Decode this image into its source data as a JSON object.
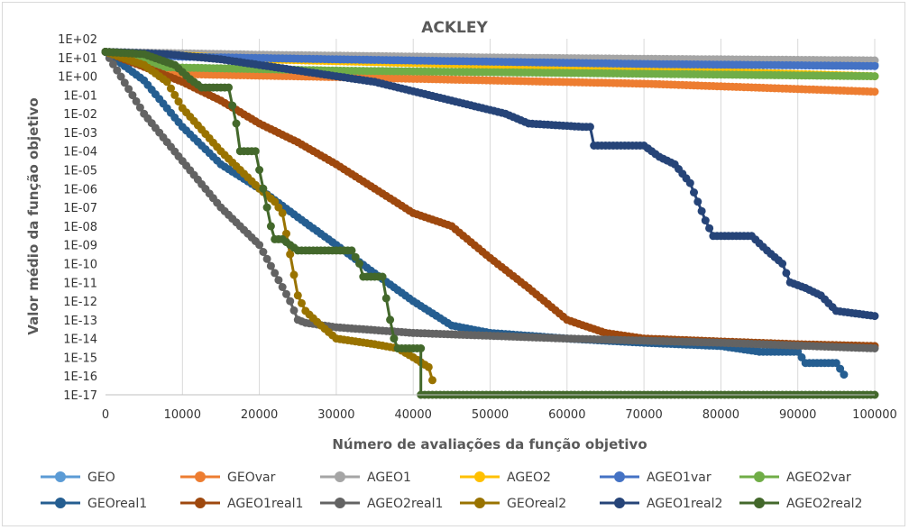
{
  "chart_data": {
    "type": "line",
    "title": "ACKLEY",
    "xlabel": "Número de avaliações da função objetivo",
    "ylabel": "Valor médio da função objetivo",
    "xlim": [
      0,
      100000
    ],
    "ylim_log10": [
      -17,
      2
    ],
    "yscale": "log",
    "x_tick_labels": [
      "0",
      "10000",
      "20000",
      "30000",
      "40000",
      "50000",
      "60000",
      "70000",
      "80000",
      "90000",
      "100000"
    ],
    "y_tick_labels": [
      "1E+02",
      "1E+01",
      "1E+00",
      "1E-01",
      "1E-02",
      "1E-03",
      "1E-04",
      "1E-05",
      "1E-06",
      "1E-07",
      "1E-08",
      "1E-09",
      "1E-10",
      "1E-11",
      "1E-12",
      "1E-13",
      "1E-14",
      "1E-15",
      "1E-16",
      "1E-17"
    ],
    "grid": "vertical",
    "legend_position": "bottom",
    "series": [
      {
        "name": "GEO",
        "color": "#5b9bd5",
        "points": [
          [
            0,
            20
          ],
          [
            10000,
            12
          ],
          [
            30000,
            9
          ],
          [
            50000,
            7
          ],
          [
            70000,
            5.5
          ],
          [
            100000,
            4
          ]
        ]
      },
      {
        "name": "GEOvar",
        "color": "#ed7d31",
        "points": [
          [
            0,
            20
          ],
          [
            10000,
            1.3
          ],
          [
            30000,
            0.9
          ],
          [
            50000,
            0.6
          ],
          [
            70000,
            0.4
          ],
          [
            100000,
            0.15
          ]
        ]
      },
      {
        "name": "AGEO1",
        "color": "#a5a5a5",
        "points": [
          [
            0,
            20
          ],
          [
            20000,
            14
          ],
          [
            50000,
            10
          ],
          [
            70000,
            8.5
          ],
          [
            100000,
            7
          ]
        ]
      },
      {
        "name": "AGEO2",
        "color": "#ffc000",
        "points": [
          [
            0,
            20
          ],
          [
            20000,
            8
          ],
          [
            50000,
            4
          ],
          [
            70000,
            2.3
          ],
          [
            100000,
            1
          ]
        ]
      },
      {
        "name": "AGEO1var",
        "color": "#4472c4",
        "points": [
          [
            0,
            20
          ],
          [
            10000,
            11
          ],
          [
            30000,
            8
          ],
          [
            50000,
            6
          ],
          [
            70000,
            4.5
          ],
          [
            100000,
            3.5
          ]
        ]
      },
      {
        "name": "AGEO2var",
        "color": "#70ad47",
        "points": [
          [
            0,
            20
          ],
          [
            8000,
            3
          ],
          [
            30000,
            2
          ],
          [
            60000,
            1.5
          ],
          [
            100000,
            1
          ]
        ]
      },
      {
        "name": "GEOreal1",
        "color": "#255e91",
        "points": [
          [
            0,
            20
          ],
          [
            5000,
            0.6
          ],
          [
            10000,
            0.002
          ],
          [
            15000,
            2e-05
          ],
          [
            20000,
            1e-06
          ],
          [
            25000,
            3e-08
          ],
          [
            30000,
            1e-09
          ],
          [
            35000,
            3e-11
          ],
          [
            40000,
            1e-12
          ],
          [
            45000,
            5e-14
          ],
          [
            50000,
            2e-14
          ],
          [
            60000,
            1e-14
          ],
          [
            70000,
            6e-15
          ],
          [
            80000,
            4e-15
          ],
          [
            85000,
            2e-15
          ],
          [
            90000,
            2e-15
          ],
          [
            91000,
            5e-16
          ],
          [
            95000,
            5e-16
          ],
          [
            96000,
            1.2e-16
          ]
        ]
      },
      {
        "name": "AGEO1real1",
        "color": "#9e480e",
        "points": [
          [
            0,
            20
          ],
          [
            10000,
            0.5
          ],
          [
            15000,
            0.05
          ],
          [
            20000,
            0.003
          ],
          [
            25000,
            0.0003
          ],
          [
            30000,
            2e-05
          ],
          [
            35000,
            1e-06
          ],
          [
            40000,
            5e-08
          ],
          [
            45000,
            1e-08
          ],
          [
            50000,
            2e-10
          ],
          [
            55000,
            5e-12
          ],
          [
            60000,
            1e-13
          ],
          [
            65000,
            2e-14
          ],
          [
            70000,
            1e-14
          ],
          [
            80000,
            7e-15
          ],
          [
            90000,
            5e-15
          ],
          [
            100000,
            4e-15
          ]
        ]
      },
      {
        "name": "AGEO2real1",
        "color": "#636363",
        "points": [
          [
            0,
            20
          ],
          [
            5000,
            0.01
          ],
          [
            10000,
            3e-05
          ],
          [
            15000,
            1e-07
          ],
          [
            20000,
            1e-09
          ],
          [
            24000,
            1e-12
          ],
          [
            25000,
            1e-13
          ],
          [
            26000,
            7e-14
          ],
          [
            30000,
            4e-14
          ],
          [
            40000,
            2e-14
          ],
          [
            60000,
            1e-14
          ],
          [
            80000,
            6e-15
          ],
          [
            100000,
            3e-15
          ]
        ]
      },
      {
        "name": "GEOreal2",
        "color": "#997300",
        "points": [
          [
            0,
            20
          ],
          [
            5000,
            4
          ],
          [
            8000,
            0.5
          ],
          [
            10000,
            0.02
          ],
          [
            15000,
            0.0001
          ],
          [
            20000,
            1e-06
          ],
          [
            22000,
            2e-07
          ],
          [
            23000,
            5e-08
          ],
          [
            25000,
            2e-12
          ],
          [
            26000,
            3e-13
          ],
          [
            28000,
            5e-14
          ],
          [
            30000,
            1e-14
          ],
          [
            35000,
            5e-15
          ],
          [
            38000,
            3e-15
          ],
          [
            40000,
            1e-15
          ],
          [
            42000,
            3e-16
          ],
          [
            42500,
            6e-17
          ]
        ]
      },
      {
        "name": "AGEO1real2",
        "color": "#264478",
        "points": [
          [
            0,
            20
          ],
          [
            8000,
            15
          ],
          [
            15000,
            8
          ],
          [
            25000,
            2
          ],
          [
            35000,
            0.5
          ],
          [
            42000,
            0.1
          ],
          [
            45000,
            0.05
          ],
          [
            52000,
            0.01
          ],
          [
            55000,
            0.003
          ],
          [
            62000,
            0.002
          ],
          [
            63000,
            0.002
          ],
          [
            63500,
            0.0002
          ],
          [
            70000,
            0.0002
          ],
          [
            72000,
            5e-05
          ],
          [
            74000,
            2e-05
          ],
          [
            76000,
            2e-06
          ],
          [
            77000,
            2e-07
          ],
          [
            78000,
            2e-08
          ],
          [
            79000,
            3e-09
          ],
          [
            84000,
            3e-09
          ],
          [
            86000,
            5e-10
          ],
          [
            88000,
            1e-10
          ],
          [
            89000,
            1e-11
          ],
          [
            91000,
            5e-12
          ],
          [
            93000,
            2e-12
          ],
          [
            95000,
            3e-13
          ],
          [
            100000,
            1.6e-13
          ]
        ]
      },
      {
        "name": "AGEO2real2",
        "color": "#43682b",
        "points": [
          [
            0,
            20
          ],
          [
            5000,
            15
          ],
          [
            9000,
            4
          ],
          [
            11000,
            0.7
          ],
          [
            12500,
            0.25
          ],
          [
            15000,
            0.25
          ],
          [
            16000,
            0.25
          ],
          [
            17000,
            0.003
          ],
          [
            17500,
            0.0001
          ],
          [
            19500,
            0.0001
          ],
          [
            20500,
            1e-06
          ],
          [
            21000,
            1e-07
          ],
          [
            21500,
            1e-08
          ],
          [
            22000,
            2e-09
          ],
          [
            23000,
            2e-09
          ],
          [
            24000,
            1e-09
          ],
          [
            25000,
            5e-10
          ],
          [
            32000,
            5e-10
          ],
          [
            33000,
            1e-10
          ],
          [
            33500,
            2e-11
          ],
          [
            36000,
            2e-11
          ],
          [
            37000,
            1e-13
          ],
          [
            37500,
            1e-14
          ],
          [
            38000,
            3e-15
          ],
          [
            41000,
            3e-15
          ],
          [
            41000,
            1e-17
          ],
          [
            100000,
            1e-17
          ]
        ]
      }
    ]
  }
}
